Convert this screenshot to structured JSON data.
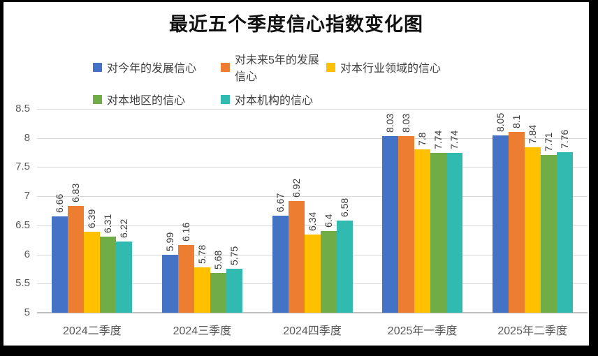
{
  "chart_data": {
    "type": "bar",
    "title": "最近五个季度信心指数变化图",
    "categories": [
      "2024二季度",
      "2024三季度",
      "2024四季度",
      "2025年一季度",
      "2025年二季度"
    ],
    "series": [
      {
        "name": "对今年的发展信心",
        "color": "#4472c4",
        "values": [
          6.66,
          5.99,
          6.67,
          8.03,
          8.05
        ],
        "labels": [
          "6.66",
          "5.99",
          "6.67",
          "8.03",
          "8.05"
        ]
      },
      {
        "name": "对未来5年的发展信心",
        "color": "#ed7d31",
        "values": [
          6.83,
          6.16,
          6.92,
          8.03,
          8.1
        ],
        "labels": [
          "6.83",
          "6.16",
          "6.92",
          "8.03",
          "8.1"
        ]
      },
      {
        "name": "对本行业领域的信心",
        "color": "#ffc000",
        "values": [
          6.39,
          5.78,
          6.34,
          7.8,
          7.84
        ],
        "labels": [
          "6.39",
          "5.78",
          "6.34",
          "7.8",
          "7.84"
        ]
      },
      {
        "name": "对本地区的信心",
        "color": "#70ad47",
        "values": [
          6.31,
          5.68,
          6.4,
          7.74,
          7.71
        ],
        "labels": [
          "6.31",
          "5.68",
          "6.4",
          "7.74",
          "7.71"
        ]
      },
      {
        "name": "对本机构的信心",
        "color": "#30bab0",
        "values": [
          6.22,
          5.75,
          6.58,
          7.74,
          7.76
        ],
        "labels": [
          "6.22",
          "5.75",
          "6.58",
          "7.74",
          "7.76"
        ]
      }
    ],
    "ylim": [
      5,
      8.5
    ],
    "yticks": [
      "5",
      "5.5",
      "6",
      "6.5",
      "7",
      "7.5",
      "8",
      "8.5"
    ],
    "xlabel": "",
    "ylabel": "",
    "grid": true,
    "legend_position": "top",
    "value_label_rotation": -90,
    "colors": {
      "gridline": "#d9d9d9",
      "axis_line": "#bfbfbf",
      "tick_label": "#595959",
      "value_label": "#383838",
      "title": "#111111",
      "frame": "#000000",
      "canvas": "#ffffff"
    }
  }
}
